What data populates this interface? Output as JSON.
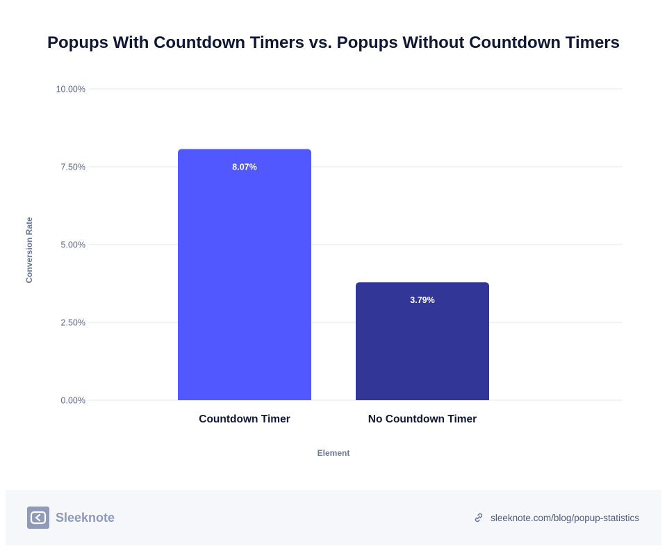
{
  "chart_data": {
    "type": "bar",
    "title": "Popups With Countdown Timers vs. Popups Without Countdown Timers",
    "categories": [
      "Countdown Timer",
      "No Countdown Timer"
    ],
    "values": [
      8.07,
      3.79
    ],
    "value_labels": [
      "8.07%",
      "3.79%"
    ],
    "bar_colors": [
      "#5258ff",
      "#323697"
    ],
    "xlabel": "Element",
    "ylabel": "Conversion Rate",
    "ylim": [
      0,
      10
    ],
    "yticks": [
      0,
      2.5,
      5,
      7.5,
      10
    ],
    "ytick_labels": [
      "0.00%",
      "2.50%",
      "5.00%",
      "7.50%",
      "10.00%"
    ],
    "grid": true
  },
  "footer": {
    "brand": "Sleeknote",
    "brand_icon": "sleeknote-logo-icon",
    "link_icon": "link-icon",
    "link_text": "sleeknote.com/blog/popup-statistics"
  }
}
